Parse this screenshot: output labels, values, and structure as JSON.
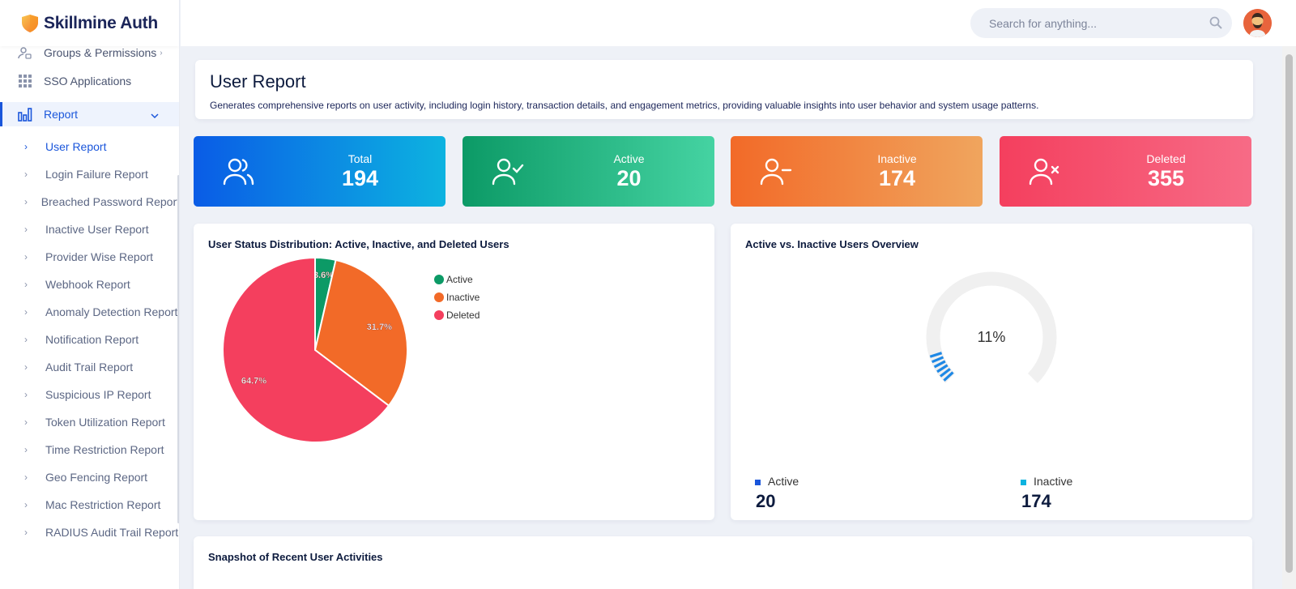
{
  "brand": {
    "name": "Skillmine Auth"
  },
  "sidebar": {
    "items": [
      {
        "label": "Groups & Permissions",
        "icon": "users-lock-icon"
      },
      {
        "label": "SSO Applications",
        "icon": "apps-grid-icon"
      },
      {
        "label": "Report",
        "icon": "bar-chart-icon"
      }
    ],
    "report_sub": [
      {
        "label": "User Report"
      },
      {
        "label": "Login Failure Report"
      },
      {
        "label": "Breached Password Report"
      },
      {
        "label": "Inactive User Report"
      },
      {
        "label": "Provider Wise Report"
      },
      {
        "label": "Webhook Report"
      },
      {
        "label": "Anomaly Detection Report"
      },
      {
        "label": "Notification Report"
      },
      {
        "label": "Audit Trail Report"
      },
      {
        "label": "Suspicious IP Report"
      },
      {
        "label": "Token Utilization Report"
      },
      {
        "label": "Time Restriction Report"
      },
      {
        "label": "Geo Fencing Report"
      },
      {
        "label": "Mac Restriction Report"
      },
      {
        "label": "RADIUS Audit Trail Report"
      }
    ]
  },
  "header": {
    "search_placeholder": "Search for anything..."
  },
  "page": {
    "title": "User Report",
    "description": "Generates comprehensive reports on user activity, including login history, transaction details, and engagement metrics, providing valuable insights into user behavior and system usage patterns."
  },
  "stats": {
    "total": {
      "label": "Total",
      "value": "194"
    },
    "active": {
      "label": "Active",
      "value": "20"
    },
    "inactive": {
      "label": "Inactive",
      "value": "174"
    },
    "deleted": {
      "label": "Deleted",
      "value": "355"
    }
  },
  "colors": {
    "active": "#0c9a66",
    "inactive": "#f26a28",
    "deleted": "#f43f5e",
    "gauge_active": "#1a56db",
    "gauge_inactive": "#0db3e0"
  },
  "pie_card": {
    "title": "User Status Distribution: Active, Inactive, and Deleted Users"
  },
  "gauge_card": {
    "title": "Active vs. Inactive Users Overview",
    "percent_label": "11%",
    "legend": [
      {
        "label": "Active",
        "value": "20"
      },
      {
        "label": "Inactive",
        "value": "174"
      }
    ]
  },
  "snapshot": {
    "title": "Snapshot of Recent User Activities"
  },
  "chart_data": [
    {
      "type": "pie",
      "categories": [
        "Active",
        "Inactive",
        "Deleted"
      ],
      "values": [
        3.6,
        31.7,
        64.7
      ],
      "data_labels": [
        "3.6%",
        "31.7%",
        "64.7%"
      ],
      "legend_placement": "right"
    },
    {
      "type": "gauge",
      "value": 11,
      "max": 100,
      "center_label": "11%"
    }
  ]
}
